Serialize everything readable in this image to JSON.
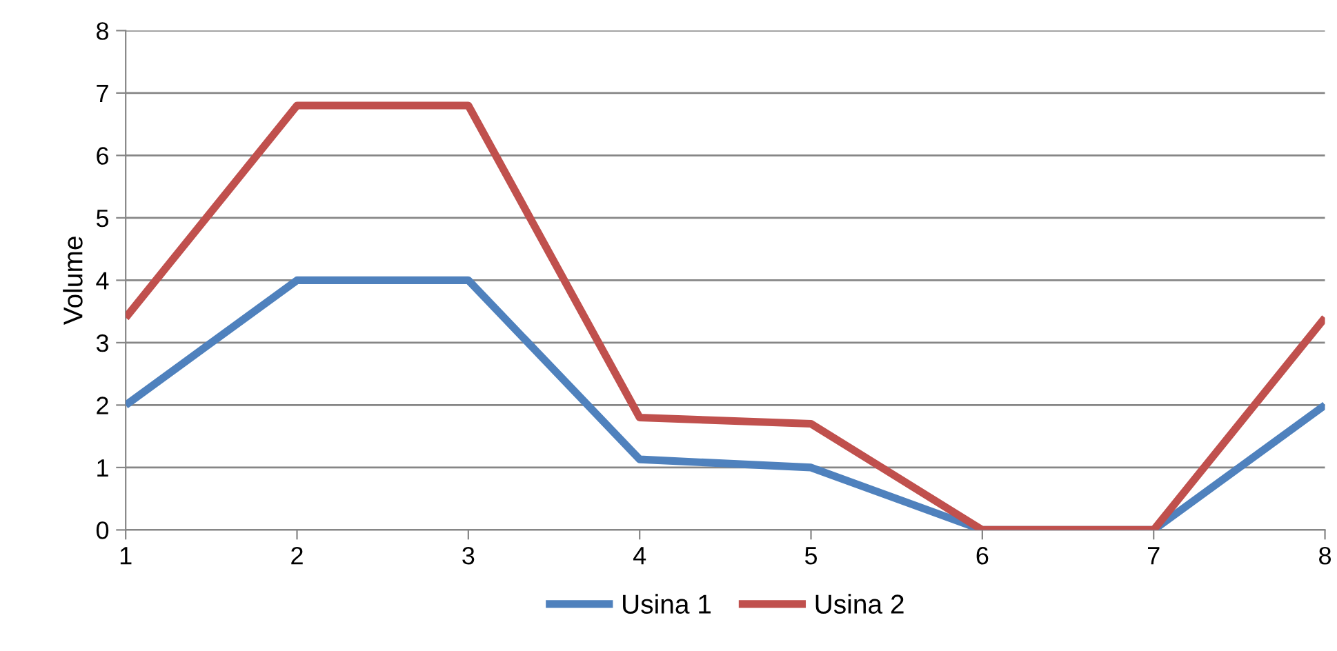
{
  "chart_data": {
    "type": "line",
    "ylabel": "Volume",
    "x": [
      1,
      2,
      3,
      4,
      5,
      6,
      7,
      8
    ],
    "series": [
      {
        "name": "Usina 1",
        "color": "#4f81bd",
        "values": [
          2,
          4,
          4,
          1.13,
          1,
          0,
          0,
          2
        ]
      },
      {
        "name": "Usina 2",
        "color": "#c0504d",
        "values": [
          3.4,
          6.8,
          6.8,
          1.8,
          1.7,
          0,
          0,
          3.4
        ]
      }
    ],
    "xlim": [
      1,
      8
    ],
    "xticks": [
      1,
      2,
      3,
      4,
      5,
      6,
      7,
      8
    ],
    "ylim": [
      0,
      8
    ],
    "yticks": [
      0,
      1,
      2,
      3,
      4,
      5,
      6,
      7,
      8
    ],
    "grid": "y",
    "legend": "bottom",
    "marker": "none",
    "line_style": "solid"
  }
}
